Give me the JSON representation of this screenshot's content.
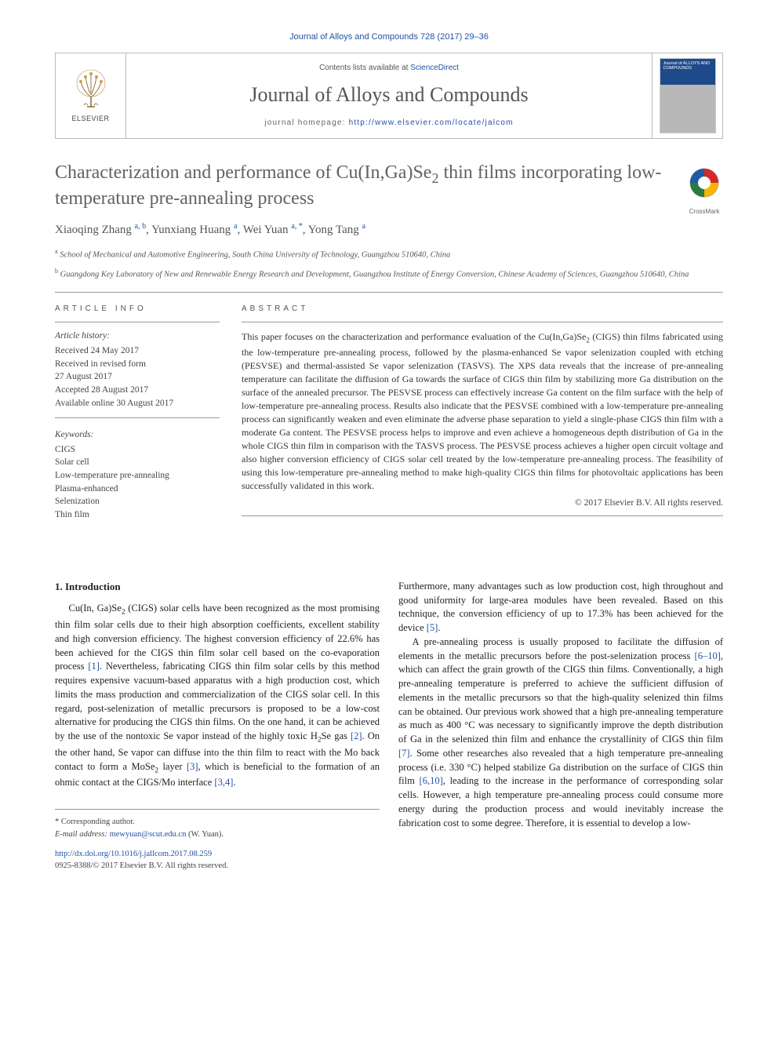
{
  "journalRef": "Journal of Alloys and Compounds 728 (2017) 29–36",
  "header": {
    "elsevierLabel": "ELSEVIER",
    "contentsPrefix": "Contents lists available at ",
    "contentsLink": "ScienceDirect",
    "journalName": "Journal of Alloys and Compounds",
    "homepagePrefix": "journal homepage: ",
    "homepageUrl": "http://www.elsevier.com/locate/jalcom",
    "coverTitle": "Journal of ALLOYS AND COMPOUNDS"
  },
  "crossmark": "CrossMark",
  "title": "Characterization and performance of Cu(In,Ga)Se₂ thin films incorporating low-temperature pre-annealing process",
  "authors": [
    {
      "name": "Xiaoqing Zhang",
      "marks": "a, b"
    },
    {
      "name": "Yunxiang Huang",
      "marks": "a"
    },
    {
      "name": "Wei Yuan",
      "marks": "a, *"
    },
    {
      "name": "Yong Tang",
      "marks": "a"
    }
  ],
  "affiliations": [
    {
      "mark": "a",
      "text": "School of Mechanical and Automotive Engineering, South China University of Technology, Guangzhou 510640, China"
    },
    {
      "mark": "b",
      "text": "Guangdong Key Laboratory of New and Renewable Energy Research and Development, Guangzhou Institute of Energy Conversion, Chinese Academy of Sciences, Guangzhou 510640, China"
    }
  ],
  "articleInfo": {
    "label": "ARTICLE INFO",
    "historyLabel": "Article history:",
    "history": [
      "Received 24 May 2017",
      "Received in revised form",
      "27 August 2017",
      "Accepted 28 August 2017",
      "Available online 30 August 2017"
    ],
    "keywordsLabel": "Keywords:",
    "keywords": [
      "CIGS",
      "Solar cell",
      "Low-temperature pre-annealing",
      "Plasma-enhanced",
      "Selenization",
      "Thin film"
    ]
  },
  "abstract": {
    "label": "ABSTRACT",
    "text": "This paper focuses on the characterization and performance evaluation of the Cu(In,Ga)Se₂ (CIGS) thin films fabricated using the low-temperature pre-annealing process, followed by the plasma-enhanced Se vapor selenization coupled with etching (PESVSE) and thermal-assisted Se vapor selenization (TASVS). The XPS data reveals that the increase of pre-annealing temperature can facilitate the diffusion of Ga towards the surface of CIGS thin film by stabilizing more Ga distribution on the surface of the annealed precursor. The PESVSE process can effectively increase Ga content on the film surface with the help of low-temperature pre-annealing process. Results also indicate that the PESVSE combined with a low-temperature pre-annealing process can significantly weaken and even eliminate the adverse phase separation to yield a single-phase CIGS thin film with a moderate Ga content. The PESVSE process helps to improve and even achieve a homogeneous depth distribution of Ga in the whole CIGS thin film in comparison with the TASVS process. The PESVSE process achieves a higher open circuit voltage and also higher conversion efficiency of CIGS solar cell treated by the low-temperature pre-annealing process. The feasibility of using this low-temperature pre-annealing method to make high-quality CIGS thin films for photovoltaic applications has been successfully validated in this work.",
    "copyright": "© 2017 Elsevier B.V. All rights reserved."
  },
  "introduction": {
    "heading": "1. Introduction",
    "col1": "Cu(In, Ga)Se₂ (CIGS) solar cells have been recognized as the most promising thin film solar cells due to their high absorption coefficients, excellent stability and high conversion efficiency. The highest conversion efficiency of 22.6% has been achieved for the CIGS thin film solar cell based on the co-evaporation process [1]. Nevertheless, fabricating CIGS thin film solar cells by this method requires expensive vacuum-based apparatus with a high production cost, which limits the mass production and commercialization of the CIGS solar cell. In this regard, post-selenization of metallic precursors is proposed to be a low-cost alternative for producing the CIGS thin films. On the one hand, it can be achieved by the use of the nontoxic Se vapor instead of the highly toxic H₂Se gas [2]. On the other hand, Se vapor can diffuse into the thin film to react with the Mo back contact to form a MoSe₂ layer [3], which is beneficial to the formation of an ohmic contact at the CIGS/Mo interface [3,4].",
    "col2p1": "Furthermore, many advantages such as low production cost, high throughout and good uniformity for large-area modules have been revealed. Based on this technique, the conversion efficiency of up to 17.3% has been achieved for the device [5].",
    "col2p2": "A pre-annealing process is usually proposed to facilitate the diffusion of elements in the metallic precursors before the post-selenization process [6–10], which can affect the grain growth of the CIGS thin films. Conventionally, a high pre-annealing temperature is preferred to achieve the sufficient diffusion of elements in the metallic precursors so that the high-quality selenized thin films can be obtained. Our previous work showed that a high pre-annealing temperature as much as 400 °C was necessary to significantly improve the depth distribution of Ga in the selenized thin film and enhance the crystallinity of CIGS thin film [7]. Some other researches also revealed that a high temperature pre-annealing process (i.e. 330 °C) helped stabilize Ga distribution on the surface of CIGS thin film [6,10], leading to the increase in the performance of corresponding solar cells. However, a high temperature pre-annealing process could consume more energy during the production process and would inevitably increase the fabrication cost to some degree. Therefore, it is essential to develop a low-"
  },
  "footer": {
    "corrLabel": "* Corresponding author.",
    "emailLabel": "E-mail address: ",
    "email": "mewyuan@scut.edu.cn",
    "emailSuffix": " (W. Yuan).",
    "doi": "http://dx.doi.org/10.1016/j.jallcom.2017.08.259",
    "issn": "0925-8388/© 2017 Elsevier B.V. All rights reserved."
  },
  "colors": {
    "link": "#2252a3",
    "text": "#333333",
    "heading": "#626262",
    "rule": "#999999"
  }
}
